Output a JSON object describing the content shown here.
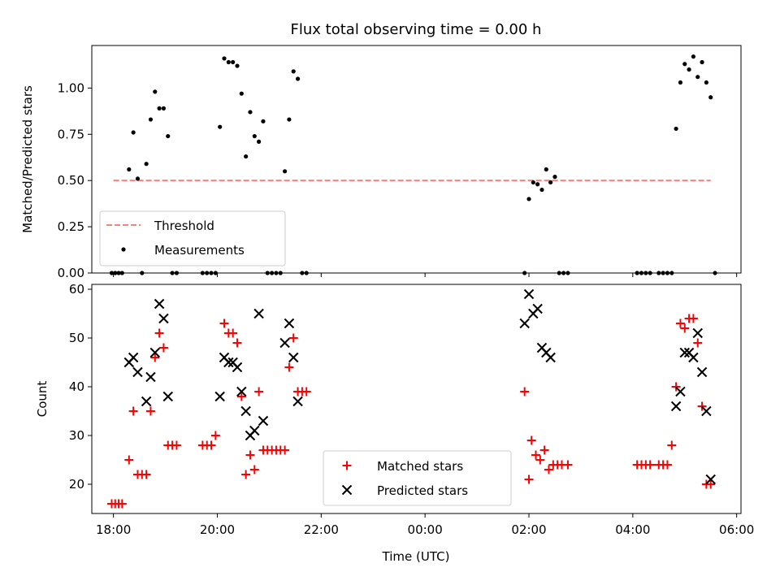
{
  "figure": {
    "title": "Flux total observing time = 0.00 h"
  },
  "chart_data": [
    {
      "type": "scatter",
      "panel": "top",
      "title": "Flux total observing time = 0.00 h",
      "xlabel": "",
      "ylabel": "Matched/Predicted stars",
      "xlim": [
        "2000-01-01T17:35",
        "2000-01-02T06:05"
      ],
      "ylim": [
        0,
        1.23
      ],
      "yticks": [
        "0.00",
        "0.25",
        "0.50",
        "0.75",
        "1.00"
      ],
      "grid": false,
      "legend_placement": "lower-left",
      "threshold": {
        "name": "Threshold",
        "value": 0.5,
        "x_start": "2000-01-01T18:00",
        "x_end": "2000-01-02T05:30",
        "color": "#ff7f7f",
        "style": "dashed"
      },
      "series": [
        {
          "name": "Measurements",
          "color": "#000000",
          "marker": "dot",
          "points": [
            [
              "2000-01-01T17:58",
              0
            ],
            [
              "2000-01-01T18:02",
              0
            ],
            [
              "2000-01-01T18:06",
              0
            ],
            [
              "2000-01-01T18:10",
              0
            ],
            [
              "2000-01-01T18:18",
              0.56
            ],
            [
              "2000-01-01T18:23",
              0.76
            ],
            [
              "2000-01-01T18:28",
              0.51
            ],
            [
              "2000-01-01T18:33",
              0
            ],
            [
              "2000-01-01T18:38",
              0.59
            ],
            [
              "2000-01-01T18:43",
              0.83
            ],
            [
              "2000-01-01T18:48",
              0.98
            ],
            [
              "2000-01-01T18:53",
              0.89
            ],
            [
              "2000-01-01T18:58",
              0.89
            ],
            [
              "2000-01-01T19:03",
              0.74
            ],
            [
              "2000-01-01T19:08",
              0
            ],
            [
              "2000-01-01T19:13",
              0
            ],
            [
              "2000-01-01T19:43",
              0
            ],
            [
              "2000-01-01T19:48",
              0
            ],
            [
              "2000-01-01T19:53",
              0
            ],
            [
              "2000-01-01T19:58",
              0
            ],
            [
              "2000-01-01T20:03",
              0.79
            ],
            [
              "2000-01-01T20:08",
              1.16
            ],
            [
              "2000-01-01T20:13",
              1.14
            ],
            [
              "2000-01-01T20:18",
              1.14
            ],
            [
              "2000-01-01T20:23",
              1.12
            ],
            [
              "2000-01-01T20:28",
              0.97
            ],
            [
              "2000-01-01T20:33",
              0.63
            ],
            [
              "2000-01-01T20:38",
              0.87
            ],
            [
              "2000-01-01T20:43",
              0.74
            ],
            [
              "2000-01-01T20:48",
              0.71
            ],
            [
              "2000-01-01T20:53",
              0.82
            ],
            [
              "2000-01-01T20:58",
              0
            ],
            [
              "2000-01-01T21:03",
              0
            ],
            [
              "2000-01-01T21:08",
              0
            ],
            [
              "2000-01-01T21:13",
              0
            ],
            [
              "2000-01-01T21:18",
              0.55
            ],
            [
              "2000-01-01T21:23",
              0.83
            ],
            [
              "2000-01-01T21:28",
              1.09
            ],
            [
              "2000-01-01T21:33",
              1.05
            ],
            [
              "2000-01-01T21:38",
              0
            ],
            [
              "2000-01-01T21:43",
              0
            ],
            [
              "2000-01-02T01:55",
              0
            ],
            [
              "2000-01-02T02:00",
              0.4
            ],
            [
              "2000-01-02T02:05",
              0.49
            ],
            [
              "2000-01-02T02:10",
              0.48
            ],
            [
              "2000-01-02T02:15",
              0.45
            ],
            [
              "2000-01-02T02:20",
              0.56
            ],
            [
              "2000-01-02T02:25",
              0.49
            ],
            [
              "2000-01-02T02:30",
              0.52
            ],
            [
              "2000-01-02T02:35",
              0
            ],
            [
              "2000-01-02T02:40",
              0
            ],
            [
              "2000-01-02T02:45",
              0
            ],
            [
              "2000-01-02T04:05",
              0
            ],
            [
              "2000-01-02T04:10",
              0
            ],
            [
              "2000-01-02T04:15",
              0
            ],
            [
              "2000-01-02T04:20",
              0
            ],
            [
              "2000-01-02T04:30",
              0
            ],
            [
              "2000-01-02T04:35",
              0
            ],
            [
              "2000-01-02T04:40",
              0
            ],
            [
              "2000-01-02T04:45",
              0
            ],
            [
              "2000-01-02T04:50",
              0.78
            ],
            [
              "2000-01-02T04:55",
              1.03
            ],
            [
              "2000-01-02T05:00",
              1.13
            ],
            [
              "2000-01-02T05:05",
              1.1
            ],
            [
              "2000-01-02T05:10",
              1.17
            ],
            [
              "2000-01-02T05:15",
              1.06
            ],
            [
              "2000-01-02T05:20",
              1.14
            ],
            [
              "2000-01-02T05:25",
              1.03
            ],
            [
              "2000-01-02T05:30",
              0.95
            ],
            [
              "2000-01-02T05:35",
              0
            ]
          ]
        }
      ]
    },
    {
      "type": "scatter",
      "panel": "bottom",
      "xlabel": "Time (UTC)",
      "ylabel": "Count",
      "xlim": [
        "2000-01-01T17:35",
        "2000-01-02T06:05"
      ],
      "ylim": [
        14,
        61
      ],
      "yticks": [
        "20",
        "30",
        "40",
        "50",
        "60"
      ],
      "xticks": [
        "18:00",
        "20:00",
        "22:00",
        "00:00",
        "02:00",
        "04:00",
        "06:00"
      ],
      "grid": false,
      "legend_placement": "lower-center",
      "series": [
        {
          "name": "Matched stars",
          "color": "#ff0000",
          "marker": "plus",
          "points": [
            [
              "2000-01-01T17:58",
              16
            ],
            [
              "2000-01-01T18:02",
              16
            ],
            [
              "2000-01-01T18:06",
              16
            ],
            [
              "2000-01-01T18:10",
              16
            ],
            [
              "2000-01-01T18:18",
              25
            ],
            [
              "2000-01-01T18:23",
              35
            ],
            [
              "2000-01-01T18:28",
              22
            ],
            [
              "2000-01-01T18:33",
              22
            ],
            [
              "2000-01-01T18:38",
              22
            ],
            [
              "2000-01-01T18:43",
              35
            ],
            [
              "2000-01-01T18:48",
              46
            ],
            [
              "2000-01-01T18:53",
              51
            ],
            [
              "2000-01-01T18:58",
              48
            ],
            [
              "2000-01-01T19:03",
              28
            ],
            [
              "2000-01-01T19:08",
              28
            ],
            [
              "2000-01-01T19:13",
              28
            ],
            [
              "2000-01-01T19:43",
              28
            ],
            [
              "2000-01-01T19:48",
              28
            ],
            [
              "2000-01-01T19:53",
              28
            ],
            [
              "2000-01-01T19:58",
              30
            ],
            [
              "2000-01-01T20:08",
              53
            ],
            [
              "2000-01-01T20:13",
              51
            ],
            [
              "2000-01-01T20:18",
              51
            ],
            [
              "2000-01-01T20:23",
              49
            ],
            [
              "2000-01-01T20:28",
              38
            ],
            [
              "2000-01-01T20:33",
              22
            ],
            [
              "2000-01-01T20:38",
              26
            ],
            [
              "2000-01-01T20:43",
              23
            ],
            [
              "2000-01-01T20:48",
              39
            ],
            [
              "2000-01-01T20:53",
              27
            ],
            [
              "2000-01-01T20:58",
              27
            ],
            [
              "2000-01-01T21:03",
              27
            ],
            [
              "2000-01-01T21:08",
              27
            ],
            [
              "2000-01-01T21:13",
              27
            ],
            [
              "2000-01-01T21:18",
              27
            ],
            [
              "2000-01-01T21:23",
              44
            ],
            [
              "2000-01-01T21:28",
              50
            ],
            [
              "2000-01-01T21:33",
              39
            ],
            [
              "2000-01-01T21:38",
              39
            ],
            [
              "2000-01-01T21:43",
              39
            ],
            [
              "2000-01-02T01:55",
              39
            ],
            [
              "2000-01-02T02:00",
              21
            ],
            [
              "2000-01-02T02:03",
              29
            ],
            [
              "2000-01-02T02:08",
              26
            ],
            [
              "2000-01-02T02:13",
              25
            ],
            [
              "2000-01-02T02:18",
              27
            ],
            [
              "2000-01-02T02:23",
              23
            ],
            [
              "2000-01-02T02:28",
              24
            ],
            [
              "2000-01-02T02:33",
              24
            ],
            [
              "2000-01-02T02:38",
              24
            ],
            [
              "2000-01-02T02:45",
              24
            ],
            [
              "2000-01-02T04:05",
              24
            ],
            [
              "2000-01-02T04:10",
              24
            ],
            [
              "2000-01-02T04:15",
              24
            ],
            [
              "2000-01-02T04:20",
              24
            ],
            [
              "2000-01-02T04:30",
              24
            ],
            [
              "2000-01-02T04:35",
              24
            ],
            [
              "2000-01-02T04:40",
              24
            ],
            [
              "2000-01-02T04:45",
              28
            ],
            [
              "2000-01-02T04:50",
              40
            ],
            [
              "2000-01-02T04:55",
              53
            ],
            [
              "2000-01-02T05:00",
              52
            ],
            [
              "2000-01-02T05:05",
              54
            ],
            [
              "2000-01-02T05:10",
              54
            ],
            [
              "2000-01-02T05:15",
              49
            ],
            [
              "2000-01-02T05:20",
              36
            ],
            [
              "2000-01-02T05:25",
              20
            ],
            [
              "2000-01-02T05:30",
              20
            ]
          ]
        },
        {
          "name": "Predicted stars",
          "color": "#000000",
          "marker": "cross",
          "points": [
            [
              "2000-01-01T18:18",
              45
            ],
            [
              "2000-01-01T18:23",
              46
            ],
            [
              "2000-01-01T18:28",
              43
            ],
            [
              "2000-01-01T18:38",
              37
            ],
            [
              "2000-01-01T18:43",
              42
            ],
            [
              "2000-01-01T18:48",
              47
            ],
            [
              "2000-01-01T18:53",
              57
            ],
            [
              "2000-01-01T18:58",
              54
            ],
            [
              "2000-01-01T19:03",
              38
            ],
            [
              "2000-01-01T20:03",
              38
            ],
            [
              "2000-01-01T20:08",
              46
            ],
            [
              "2000-01-01T20:13",
              45
            ],
            [
              "2000-01-01T20:18",
              45
            ],
            [
              "2000-01-01T20:23",
              44
            ],
            [
              "2000-01-01T20:28",
              39
            ],
            [
              "2000-01-01T20:33",
              35
            ],
            [
              "2000-01-01T20:38",
              30
            ],
            [
              "2000-01-01T20:43",
              31
            ],
            [
              "2000-01-01T20:48",
              55
            ],
            [
              "2000-01-01T20:53",
              33
            ],
            [
              "2000-01-01T21:18",
              49
            ],
            [
              "2000-01-01T21:23",
              53
            ],
            [
              "2000-01-01T21:28",
              46
            ],
            [
              "2000-01-01T21:33",
              37
            ],
            [
              "2000-01-02T01:55",
              53
            ],
            [
              "2000-01-02T02:00",
              59
            ],
            [
              "2000-01-02T02:05",
              55
            ],
            [
              "2000-01-02T02:10",
              56
            ],
            [
              "2000-01-02T02:15",
              48
            ],
            [
              "2000-01-02T02:20",
              47
            ],
            [
              "2000-01-02T02:25",
              46
            ],
            [
              "2000-01-02T04:50",
              36
            ],
            [
              "2000-01-02T04:55",
              39
            ],
            [
              "2000-01-02T05:00",
              47
            ],
            [
              "2000-01-02T05:05",
              47
            ],
            [
              "2000-01-02T05:10",
              46
            ],
            [
              "2000-01-02T05:15",
              51
            ],
            [
              "2000-01-02T05:20",
              43
            ],
            [
              "2000-01-02T05:25",
              35
            ],
            [
              "2000-01-02T05:30",
              21
            ]
          ]
        }
      ]
    }
  ]
}
